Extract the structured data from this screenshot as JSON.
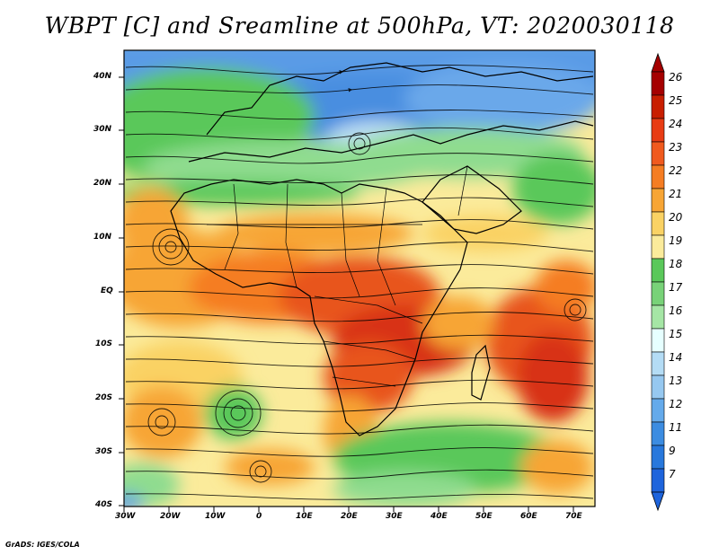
{
  "title": "WBPT [C] and Sreamline at 500hPa, VT: 2020030118",
  "credit": "GrADS: IGES/COLA",
  "map": {
    "lat_labels": [
      "40N",
      "30N",
      "20N",
      "10N",
      "EQ",
      "10S",
      "20S",
      "30S",
      "40S"
    ],
    "lon_labels": [
      "30W",
      "20W",
      "10W",
      "0",
      "10E",
      "20E",
      "30E",
      "40E",
      "50E",
      "60E",
      "70E"
    ]
  },
  "colorbar": {
    "labels": [
      "26",
      "25",
      "24",
      "23",
      "22",
      "21",
      "20",
      "19",
      "18",
      "17",
      "16",
      "15",
      "14",
      "13",
      "12",
      "11",
      "9",
      "7"
    ],
    "colors": [
      "#a50000",
      "#c81e00",
      "#e83c14",
      "#f05a1e",
      "#f57d23",
      "#f7a535",
      "#fad264",
      "#fbeb9b",
      "#5ac85a",
      "#78d278",
      "#a5e6a5",
      "#e6ffff",
      "#b4dcf5",
      "#96c8f0",
      "#64aaeb",
      "#3c8ce1",
      "#2878dc",
      "#1e64dc"
    ]
  },
  "palette": {
    "cold_blue": "#5a9be6",
    "light_blue": "#bfe0f5",
    "green": "#5ac85a",
    "light_green": "#8fdc8f",
    "pale_yellow": "#fbeb9b",
    "yellow": "#fad264",
    "orange": "#f7a535",
    "dark_orange": "#f57d23",
    "red_orange": "#e8551e",
    "red": "#d83214"
  }
}
